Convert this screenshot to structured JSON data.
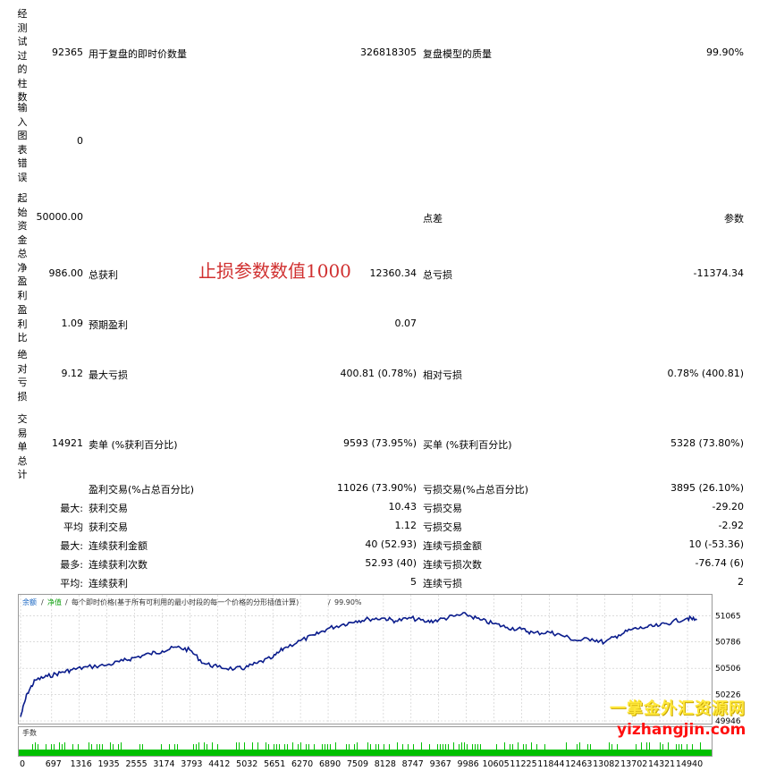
{
  "left_labels": [
    "经测试过的柱数",
    "输入图表错误",
    "起始资金",
    "总净盈利",
    "盈利比",
    "绝对亏损",
    "交易单总计"
  ],
  "row_bars": {
    "value": "92365",
    "label1": "用于复盘的即时价数量",
    "value2": "326818305",
    "label2": "复盘模型的质量",
    "value3": "99.90%"
  },
  "row_errors": {
    "value": "0"
  },
  "row_deposit": {
    "value": "50000.00",
    "label2": "点差",
    "value3": "参数"
  },
  "row_netprofit": {
    "value": "986.00",
    "label1": "总获利",
    "value2": "12360.34",
    "label2": "总亏损",
    "value3": "-11374.34"
  },
  "row_profitfactor": {
    "value": "1.09",
    "label1": "预期盈利",
    "value2": "0.07"
  },
  "row_drawdown": {
    "value": "9.12",
    "label1": "最大亏损",
    "value2": "400.81 (0.78%)",
    "label2": "相对亏损",
    "value3": "0.78% (400.81)"
  },
  "row_trades": {
    "value": "14921",
    "label1": "卖单 (%获利百分比)",
    "value2": "9593 (73.95%)",
    "label2": "买单 (%获利百分比)",
    "value3": "5328 (73.80%)"
  },
  "row_profit_trades": {
    "label1": "盈利交易(%占总百分比)",
    "value2": "11026 (73.90%)",
    "label2": "亏损交易(%占总百分比)",
    "value3": "3895 (26.10%)"
  },
  "row_largest": {
    "prefix": "最大:",
    "label1": "获利交易",
    "value2": "10.43",
    "label2": "亏损交易",
    "value3": "-29.20"
  },
  "row_average": {
    "prefix": "平均",
    "label1": "获利交易",
    "value2": "1.12",
    "label2": "亏损交易",
    "value3": "-2.92"
  },
  "row_max_consec": {
    "prefix": "最大:",
    "label1": "连续获利金额",
    "value2": "40 (52.93)",
    "label2": "连续亏损金额",
    "value3": "10 (-53.36)"
  },
  "row_maximal": {
    "prefix": "最多:",
    "label1": "连续获利次数",
    "value2": "52.93 (40)",
    "label2": "连续亏损次数",
    "value3": "-76.74 (6)"
  },
  "row_avg_consec": {
    "prefix": "平均:",
    "label1": "连续获利",
    "value2": "5",
    "label2": "连续亏损",
    "value3": "2"
  },
  "annotation": "止损参数数值1000",
  "chart_header": {
    "balance": "余额",
    "sep1": "/",
    "equity": "净值",
    "sep2": "/",
    "model": "每个即时价格(基于所有可利用的最小时段的每一个价格的分形插值计算)",
    "sep3": "/",
    "quality": "99.90%"
  },
  "volume_label": "手数",
  "watermark_cn": "一掌金外汇资源网",
  "watermark_url": "yizhangjin.com",
  "chart_data": {
    "type": "line",
    "x_ticks": [
      0,
      697,
      1316,
      1935,
      2555,
      3174,
      3793,
      4412,
      5032,
      5651,
      6270,
      6890,
      7509,
      8128,
      8747,
      9367,
      9986,
      10605,
      11225,
      11844,
      12463,
      13082,
      13702,
      14321,
      14940
    ],
    "y_ticks": [
      49946,
      50226,
      50506,
      50786,
      51065
    ],
    "ylim": [
      49946,
      51145
    ],
    "xlim": [
      0,
      15300
    ],
    "grid": true,
    "series": [
      {
        "name": "余额",
        "color": "#0a1c8c",
        "x": [
          0,
          150,
          330,
          600,
          900,
          1150,
          1500,
          1935,
          2300,
          2555,
          2900,
          3174,
          3500,
          3793,
          4100,
          4412,
          4800,
          5032,
          5300,
          5651,
          5900,
          6270,
          6600,
          6890,
          7200,
          7509,
          7800,
          8128,
          8400,
          8747,
          9100,
          9367,
          9700,
          9986,
          10300,
          10605,
          10900,
          11225,
          11500,
          11844,
          12100,
          12463,
          12800,
          13082,
          13400,
          13702,
          14000,
          14321,
          14600,
          14940,
          15150
        ],
        "values": [
          49990,
          50240,
          50380,
          50420,
          50460,
          50490,
          50520,
          50540,
          50585,
          50620,
          50660,
          50690,
          50730,
          50700,
          50560,
          50520,
          50500,
          50510,
          50560,
          50620,
          50720,
          50800,
          50860,
          50930,
          50970,
          51010,
          51030,
          51040,
          51010,
          51040,
          51000,
          51020,
          51060,
          51080,
          51020,
          50980,
          50940,
          50920,
          50880,
          50890,
          50860,
          50800,
          50820,
          50780,
          50860,
          50920,
          50940,
          50960,
          51000,
          51040,
          51020
        ]
      }
    ],
    "volume_bars": {
      "color": "#00c000"
    }
  }
}
